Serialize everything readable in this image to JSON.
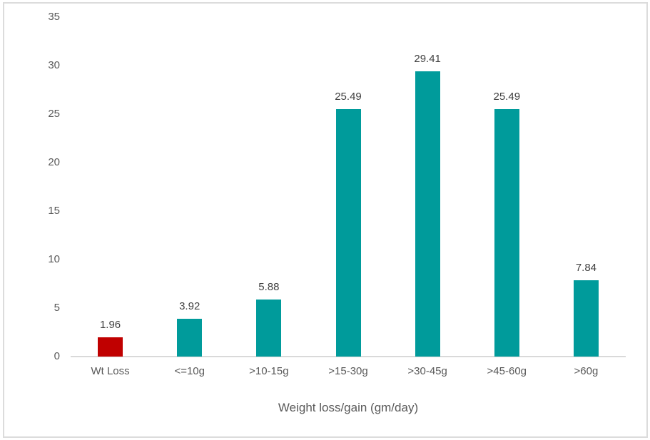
{
  "chart_data": {
    "type": "bar",
    "title": "",
    "xlabel": "Weight loss/gain (gm/day)",
    "ylabel": "",
    "categories": [
      "Wt Loss",
      "<=10g",
      ">10-15g",
      ">15-30g",
      ">30-45g",
      ">45-60g",
      ">60g"
    ],
    "values": [
      1.96,
      3.92,
      5.88,
      25.49,
      29.41,
      25.49,
      7.84
    ],
    "data_labels": [
      "1.96",
      "3.92",
      "5.88",
      "25.49",
      "29.41",
      "25.49",
      "7.84"
    ],
    "bar_colors": [
      "#c00000",
      "#009b9b",
      "#009b9b",
      "#009b9b",
      "#009b9b",
      "#009b9b",
      "#009b9b"
    ],
    "ylim": [
      0,
      35
    ],
    "yticks": [
      0,
      5,
      10,
      15,
      20,
      25,
      30,
      35
    ],
    "grid": false,
    "legend": false
  },
  "colors": {
    "bar_teal": "#009b9b",
    "bar_red": "#c00000",
    "axis_line": "#d9d9d9",
    "tick_text": "#595959",
    "data_label_text": "#404040",
    "figure_border": "#dcdcdc",
    "background": "#ffffff"
  }
}
